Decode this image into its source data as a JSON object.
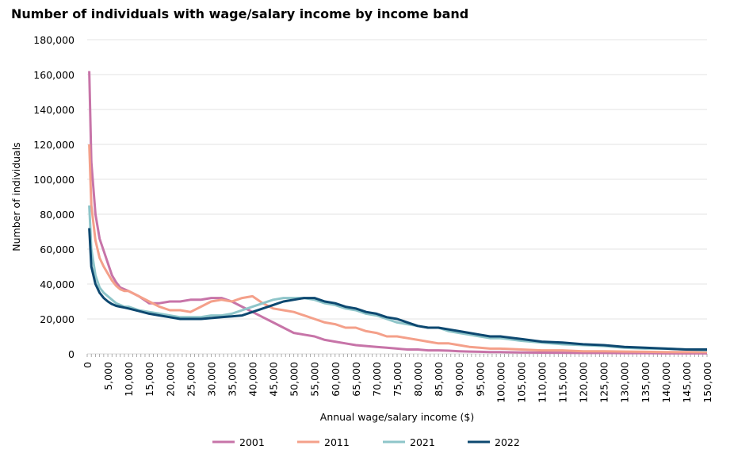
{
  "chart_data": {
    "type": "line",
    "title": "Number of individuals with wage/salary income by income band",
    "xlabel": "Annual wage/salary income ($)",
    "ylabel": "Number of individuals",
    "xlim": [
      0,
      150000
    ],
    "ylim": [
      0,
      180000
    ],
    "yticks": [
      0,
      20000,
      40000,
      60000,
      80000,
      100000,
      120000,
      140000,
      160000,
      180000
    ],
    "ytick_labels": [
      "0",
      "20,000",
      "40,000",
      "60,000",
      "80,000",
      "100,000",
      "120,000",
      "140,000",
      "160,000",
      "180,000"
    ],
    "xticks": [
      0,
      5000,
      10000,
      15000,
      20000,
      25000,
      30000,
      35000,
      40000,
      45000,
      50000,
      55000,
      60000,
      65000,
      70000,
      75000,
      80000,
      85000,
      90000,
      95000,
      100000,
      105000,
      110000,
      115000,
      120000,
      125000,
      130000,
      135000,
      140000,
      145000,
      150000
    ],
    "xtick_labels": [
      "0",
      "5,000",
      "10,000",
      "15,000",
      "20,000",
      "25,000",
      "30,000",
      "35,000",
      "40,000",
      "45,000",
      "50,000",
      "55,000",
      "60,000",
      "65,000",
      "70,000",
      "75,000",
      "80,000",
      "85,000",
      "90,000",
      "95,000",
      "100,000",
      "105,000",
      "110,000",
      "115,000",
      "120,000",
      "125,000",
      "130,000",
      "135,000",
      "140,000",
      "145,000",
      "150,000"
    ],
    "grid": "horizontal",
    "legend": "bottom",
    "x": [
      500,
      1000,
      2000,
      3000,
      4000,
      5000,
      6000,
      7000,
      8000,
      9000,
      10000,
      12500,
      15000,
      17500,
      20000,
      22500,
      25000,
      27500,
      30000,
      32500,
      35000,
      37500,
      40000,
      42500,
      45000,
      47500,
      50000,
      52500,
      55000,
      57500,
      60000,
      62500,
      65000,
      67500,
      70000,
      72500,
      75000,
      77500,
      80000,
      82500,
      85000,
      87500,
      90000,
      92500,
      95000,
      97500,
      100000,
      105000,
      110000,
      115000,
      120000,
      125000,
      130000,
      135000,
      140000,
      145000,
      150000
    ],
    "series": [
      {
        "name": "2001",
        "color": "#c774a8",
        "values": [
          162000,
          110000,
          80000,
          66000,
          59000,
          52000,
          45000,
          41000,
          38000,
          37000,
          36000,
          33000,
          29000,
          29000,
          30000,
          30000,
          31000,
          31000,
          32000,
          32000,
          30000,
          27000,
          24000,
          21000,
          18000,
          15000,
          12000,
          11000,
          10000,
          8000,
          7000,
          6000,
          5000,
          4500,
          4000,
          3500,
          3000,
          2500,
          2500,
          2000,
          2000,
          1800,
          1500,
          1300,
          1200,
          1000,
          1000,
          800,
          700,
          600,
          500,
          500,
          400,
          400,
          300,
          300,
          300
        ]
      },
      {
        "name": "2011",
        "color": "#f4a08a",
        "values": [
          120000,
          85000,
          65000,
          55000,
          50000,
          46000,
          42000,
          39000,
          37000,
          36000,
          36000,
          33000,
          30000,
          27000,
          25000,
          25000,
          24000,
          27000,
          30000,
          31000,
          30000,
          32000,
          33000,
          29000,
          26000,
          25000,
          24000,
          22000,
          20000,
          18000,
          17000,
          15000,
          15000,
          13000,
          12000,
          10000,
          10000,
          9000,
          8000,
          7000,
          6000,
          6000,
          5000,
          4000,
          3500,
          3000,
          3000,
          2500,
          2000,
          2000,
          1500,
          1500,
          1300,
          1200,
          1000,
          1000,
          1000
        ]
      },
      {
        "name": "2021",
        "color": "#8ec5c9",
        "values": [
          85000,
          60000,
          45000,
          38000,
          35000,
          33000,
          31000,
          29000,
          28000,
          27000,
          27000,
          25000,
          24000,
          23000,
          22000,
          21000,
          21000,
          21000,
          22000,
          22000,
          23000,
          25000,
          27000,
          29000,
          31000,
          32000,
          32000,
          32000,
          31000,
          29000,
          28000,
          26000,
          25000,
          23000,
          22000,
          20000,
          18000,
          17000,
          16000,
          15000,
          15000,
          13000,
          12000,
          11000,
          10000,
          9000,
          9000,
          7500,
          6500,
          5500,
          5000,
          4500,
          3500,
          3000,
          3000,
          2500,
          2000
        ]
      },
      {
        "name": "2022",
        "color": "#0d4870",
        "values": [
          72000,
          50000,
          40000,
          35000,
          32000,
          30000,
          28500,
          27500,
          27000,
          26500,
          26000,
          24500,
          23000,
          22000,
          21000,
          20000,
          20000,
          20000,
          20500,
          21000,
          21500,
          22000,
          24000,
          26000,
          28000,
          30000,
          31000,
          32000,
          32000,
          30000,
          29000,
          27000,
          26000,
          24000,
          23000,
          21000,
          20000,
          18000,
          16000,
          15000,
          15000,
          14000,
          13000,
          12000,
          11000,
          10000,
          10000,
          8500,
          7000,
          6500,
          5500,
          5000,
          4000,
          3500,
          3000,
          2500,
          2500
        ]
      }
    ]
  }
}
